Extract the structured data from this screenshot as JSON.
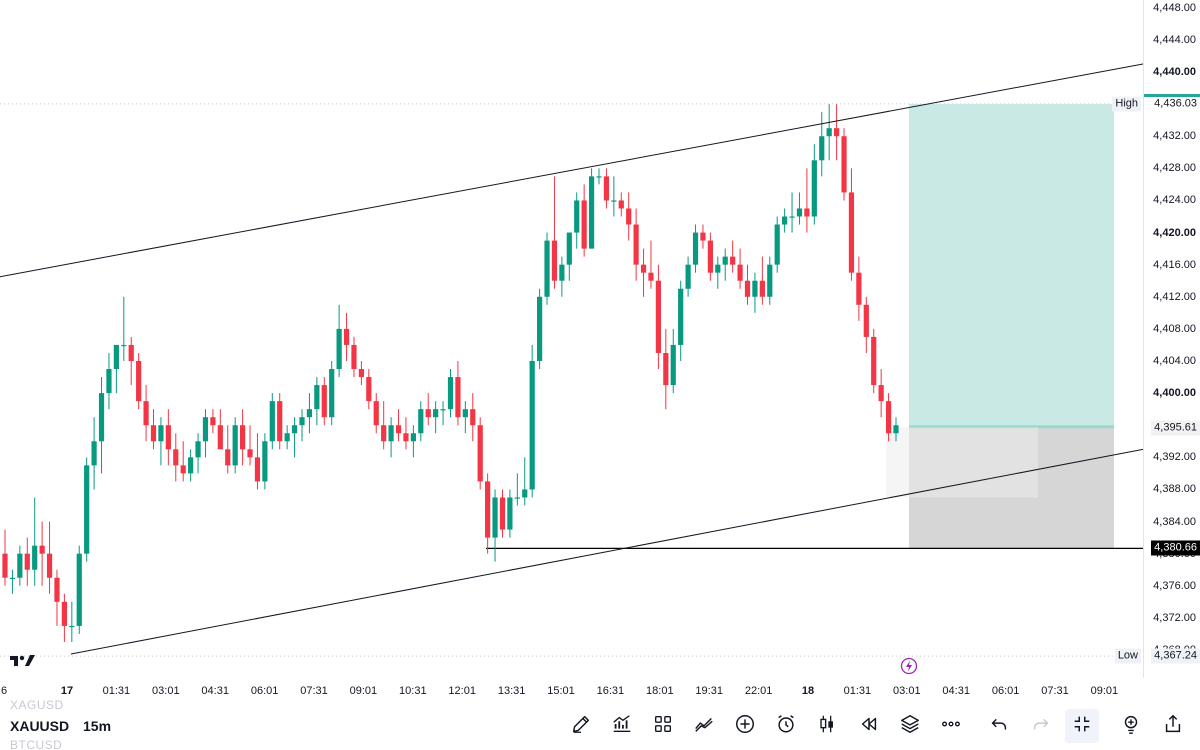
{
  "symbol": "XAUUSD",
  "interval": "15m",
  "faded_symbols": [
    "XAGUSD",
    "BTCUSD"
  ],
  "price_axis": {
    "ticks": [
      "4,448.00",
      "4,444.00",
      "4,440.00",
      "4,436.00",
      "4,432.00",
      "4,428.00",
      "4,424.00",
      "4,420.00",
      "4,416.00",
      "4,412.00",
      "4,408.00",
      "4,404.00",
      "4,400.00",
      "4,396.00",
      "4,392.00",
      "4,388.00",
      "4,384.00",
      "4,380.00",
      "4,376.00",
      "4,372.00",
      "4,368.00"
    ],
    "bold_ticks": [
      "4,440.00",
      "4,420.00",
      "4,400.00"
    ],
    "high_label": "High",
    "high_value": "4,436.03",
    "current_value": "4,395.61",
    "stop_value": "4,380.66",
    "low_label": "Low",
    "low_value": "4,367.24"
  },
  "time_axis": {
    "labels": [
      "6",
      "17",
      "01:31",
      "03:01",
      "04:31",
      "06:01",
      "07:31",
      "09:01",
      "10:31",
      "12:01",
      "13:31",
      "15:01",
      "16:31",
      "18:01",
      "19:31",
      "22:01",
      "18",
      "01:31",
      "03:01",
      "04:31",
      "06:01",
      "07:31",
      "09:01"
    ],
    "bold_labels": [
      "17",
      "18"
    ]
  },
  "colors": {
    "up": "#089981",
    "down": "#f23645",
    "profit_zone": "#c6e9e3",
    "loss_zone": "#d6d6d6",
    "current_tag": "#f2f2f2",
    "stop_tag": "#000000",
    "high_tag": "#26a69a"
  },
  "toolbar_icons": [
    "pencil-icon",
    "indicators-icon",
    "layout-grid-icon",
    "compare-icon",
    "add-icon",
    "alarm-icon",
    "candles-icon",
    "replay-icon",
    "layers-icon",
    "more-icon",
    "undo-icon",
    "redo-icon",
    "fullscreen-exit-icon",
    "idea-icon",
    "share-icon"
  ],
  "chart_data": {
    "type": "candlestick",
    "symbol": "XAUUSD",
    "timeframe": "15m",
    "ylim": [
      4364,
      4449
    ],
    "candles": [
      [
        4380.0,
        4383.0,
        4376.0,
        4377.0
      ],
      [
        4377.0,
        4378.0,
        4375.0,
        4377.0
      ],
      [
        4377.0,
        4381.0,
        4376.0,
        4380.0
      ],
      [
        4380.0,
        4382.0,
        4376.0,
        4378.0
      ],
      [
        4378.0,
        4387.0,
        4376.0,
        4381.0
      ],
      [
        4381.0,
        4384.0,
        4376.0,
        4380.0
      ],
      [
        4380.0,
        4384.0,
        4375.0,
        4377.0
      ],
      [
        4377.0,
        4378.0,
        4371.0,
        4374.0
      ],
      [
        4374.0,
        4375.0,
        4369.0,
        4371.0
      ],
      [
        4371.0,
        4374.0,
        4369.0,
        4371.0
      ],
      [
        4371.0,
        4381.0,
        4370.0,
        4380.0
      ],
      [
        4380.0,
        4392.0,
        4379.0,
        4391.0
      ],
      [
        4391.0,
        4397.0,
        4388.0,
        4394.0
      ],
      [
        4394.0,
        4402.0,
        4390.0,
        4400.0
      ],
      [
        4400.0,
        4405.0,
        4398.0,
        4403.0
      ],
      [
        4403.0,
        4406.0,
        4400.0,
        4406.0
      ],
      [
        4406.0,
        4412.0,
        4404.0,
        4406.0
      ],
      [
        4406.0,
        4407.0,
        4401.0,
        4404.0
      ],
      [
        4404.0,
        4405.0,
        4398.0,
        4399.0
      ],
      [
        4399.0,
        4401.0,
        4394.0,
        4396.0
      ],
      [
        4396.0,
        4398.0,
        4393.0,
        4394.0
      ],
      [
        4394.0,
        4397.0,
        4391.0,
        4396.0
      ],
      [
        4396.0,
        4398.0,
        4391.0,
        4393.0
      ],
      [
        4393.0,
        4395.0,
        4389.0,
        4391.0
      ],
      [
        4391.0,
        4394.0,
        4389.0,
        4390.0
      ],
      [
        4390.0,
        4393.0,
        4389.0,
        4392.0
      ],
      [
        4392.0,
        4395.0,
        4390.0,
        4394.0
      ],
      [
        4394.0,
        4398.0,
        4392.0,
        4397.0
      ],
      [
        4397.0,
        4398.0,
        4395.0,
        4396.0
      ],
      [
        4396.0,
        4398.0,
        4393.0,
        4393.0
      ],
      [
        4393.0,
        4396.0,
        4390.0,
        4391.0
      ],
      [
        4391.0,
        4397.0,
        4390.0,
        4396.0
      ],
      [
        4396.0,
        4398.0,
        4391.0,
        4393.0
      ],
      [
        4393.0,
        4396.0,
        4391.0,
        4392.0
      ],
      [
        4392.0,
        4395.0,
        4388.0,
        4389.0
      ],
      [
        4389.0,
        4395.0,
        4388.0,
        4394.0
      ],
      [
        4394.0,
        4400.0,
        4393.0,
        4399.0
      ],
      [
        4399.0,
        4400.0,
        4393.0,
        4394.0
      ],
      [
        4394.0,
        4396.0,
        4393.0,
        4395.0
      ],
      [
        4395.0,
        4397.0,
        4392.0,
        4396.0
      ],
      [
        4396.0,
        4398.0,
        4394.0,
        4397.0
      ],
      [
        4397.0,
        4400.0,
        4395.0,
        4398.0
      ],
      [
        4398.0,
        4402.0,
        4396.0,
        4401.0
      ],
      [
        4401.0,
        4402.0,
        4396.0,
        4397.0
      ],
      [
        4397.0,
        4404.0,
        4396.0,
        4403.0
      ],
      [
        4403.0,
        4411.0,
        4402.0,
        4408.0
      ],
      [
        4408.0,
        4410.0,
        4404.0,
        4406.0
      ],
      [
        4406.0,
        4407.0,
        4402.0,
        4403.0
      ],
      [
        4403.0,
        4404.0,
        4401.0,
        4402.0
      ],
      [
        4402.0,
        4403.0,
        4398.0,
        4399.0
      ],
      [
        4399.0,
        4400.0,
        4395.0,
        4396.0
      ],
      [
        4396.0,
        4399.0,
        4393.0,
        4394.0
      ],
      [
        4394.0,
        4397.0,
        4392.0,
        4396.0
      ],
      [
        4396.0,
        4398.0,
        4394.0,
        4395.0
      ],
      [
        4395.0,
        4397.0,
        4393.0,
        4394.0
      ],
      [
        4394.0,
        4396.0,
        4392.0,
        4395.0
      ],
      [
        4395.0,
        4399.0,
        4394.0,
        4398.0
      ],
      [
        4398.0,
        4400.0,
        4396.0,
        4397.0
      ],
      [
        4397.0,
        4399.0,
        4395.0,
        4398.0
      ],
      [
        4398.0,
        4399.0,
        4396.0,
        4398.0
      ],
      [
        4398.0,
        4403.0,
        4397.0,
        4402.0
      ],
      [
        4402.0,
        4404.0,
        4396.0,
        4397.0
      ],
      [
        4397.0,
        4399.0,
        4395.0,
        4398.0
      ],
      [
        4398.0,
        4400.0,
        4394.0,
        4396.0
      ],
      [
        4396.0,
        4397.0,
        4388.0,
        4389.0
      ],
      [
        4389.0,
        4390.0,
        4380.0,
        4382.0
      ],
      [
        4382.0,
        4388.0,
        4379.0,
        4387.0
      ],
      [
        4387.0,
        4388.0,
        4382.0,
        4383.0
      ],
      [
        4383.0,
        4388.0,
        4382.0,
        4387.0
      ],
      [
        4387.0,
        4390.0,
        4386.0,
        4387.0
      ],
      [
        4387.0,
        4392.0,
        4386.0,
        4388.0
      ],
      [
        4388.0,
        4406.0,
        4387.0,
        4404.0
      ],
      [
        4404.0,
        4413.0,
        4403.0,
        4412.0
      ],
      [
        4412.0,
        4420.0,
        4411.0,
        4419.0
      ],
      [
        4419.0,
        4427.0,
        4413.0,
        4414.0
      ],
      [
        4414.0,
        4417.0,
        4412.0,
        4416.0
      ],
      [
        4416.0,
        4420.0,
        4414.0,
        4420.0
      ],
      [
        4420.0,
        4425.0,
        4418.0,
        4424.0
      ],
      [
        4424.0,
        4426.0,
        4417.0,
        4418.0
      ],
      [
        4418.0,
        4428.0,
        4418.0,
        4427.0
      ],
      [
        4427.0,
        4428.0,
        4426.0,
        4427.0
      ],
      [
        4427.0,
        4428.0,
        4423.0,
        4424.0
      ],
      [
        4424.0,
        4427.0,
        4422.0,
        4424.0
      ],
      [
        4424.0,
        4425.0,
        4422.0,
        4423.0
      ],
      [
        4423.0,
        4425.0,
        4419.0,
        4421.0
      ],
      [
        4421.0,
        4423.0,
        4414.0,
        4416.0
      ],
      [
        4416.0,
        4418.0,
        4412.0,
        4415.0
      ],
      [
        4415.0,
        4419.0,
        4413.0,
        4414.0
      ],
      [
        4414.0,
        4416.0,
        4403.0,
        4405.0
      ],
      [
        4405.0,
        4408.0,
        4398.0,
        4401.0
      ],
      [
        4401.0,
        4408.0,
        4400.0,
        4406.0
      ],
      [
        4406.0,
        4414.0,
        4404.0,
        4413.0
      ],
      [
        4413.0,
        4417.0,
        4412.0,
        4416.0
      ],
      [
        4416.0,
        4421.0,
        4415.0,
        4420.0
      ],
      [
        4420.0,
        4421.0,
        4418.0,
        4419.0
      ],
      [
        4419.0,
        4420.0,
        4414.0,
        4415.0
      ],
      [
        4415.0,
        4417.0,
        4413.0,
        4416.0
      ],
      [
        4416.0,
        4418.0,
        4414.0,
        4417.0
      ],
      [
        4417.0,
        4419.0,
        4415.0,
        4416.0
      ],
      [
        4416.0,
        4418.0,
        4413.0,
        4414.0
      ],
      [
        4414.0,
        4416.0,
        4411.0,
        4412.0
      ],
      [
        4412.0,
        4415.0,
        4410.0,
        4414.0
      ],
      [
        4414.0,
        4417.0,
        4411.0,
        4412.0
      ],
      [
        4412.0,
        4417.0,
        4411.0,
        4416.0
      ],
      [
        4416.0,
        4422.0,
        4415.0,
        4421.0
      ],
      [
        4421.0,
        4423.0,
        4420.0,
        4422.0
      ],
      [
        4422.0,
        4425.0,
        4420.0,
        4422.0
      ],
      [
        4422.0,
        4425.0,
        4421.0,
        4423.0
      ],
      [
        4423.0,
        4428.0,
        4420.0,
        4422.0
      ],
      [
        4422.0,
        4431.0,
        4421.0,
        4429.0
      ],
      [
        4429.0,
        4435.0,
        4427.0,
        4432.0
      ],
      [
        4432.0,
        4436.0,
        4429.0,
        4433.0
      ],
      [
        4433.0,
        4436.0,
        4429.0,
        4432.0
      ],
      [
        4432.0,
        4433.0,
        4424.0,
        4425.0
      ],
      [
        4425.0,
        4428.0,
        4414.0,
        4415.0
      ],
      [
        4415.0,
        4417.0,
        4409.0,
        4411.0
      ],
      [
        4411.0,
        4412.0,
        4405.0,
        4407.0
      ],
      [
        4407.0,
        4408.0,
        4400.0,
        4401.0
      ],
      [
        4401.0,
        4403.0,
        4397.0,
        4399.0
      ],
      [
        4399.0,
        4400.0,
        4394.0,
        4395.0
      ],
      [
        4395.0,
        4397.0,
        4394.0,
        4396.0
      ]
    ],
    "series": [
      {
        "name": "XAUUSD"
      }
    ],
    "price_labels": [
      "4,448.00",
      "4,444.00",
      "4,440.00",
      "4,436.00",
      "4,432.00",
      "4,428.00",
      "4,424.00",
      "4,420.00",
      "4,416.00",
      "4,412.00",
      "4,408.00",
      "4,404.00",
      "4,400.00",
      "4,396.00",
      "4,392.00",
      "4,388.00",
      "4,384.00",
      "4,380.00",
      "4,376.00",
      "4,372.00",
      "4,368.00"
    ],
    "time_labels": [
      "6",
      "17",
      "01:31",
      "03:01",
      "04:31",
      "06:01",
      "07:31",
      "09:01",
      "10:31",
      "12:01",
      "13:31",
      "15:01",
      "16:31",
      "18:01",
      "19:31",
      "22:01",
      "18",
      "01:31",
      "03:01",
      "04:31",
      "06:01",
      "07:31",
      "09:01"
    ],
    "annotations": {
      "channel_upper": [
        [
          0,
          4414.5
        ],
        [
          131,
          4441.0
        ]
      ],
      "channel_lower": [
        [
          7,
          4367.5
        ],
        [
          131,
          4393.0
        ]
      ],
      "horizontal_line": {
        "start": 55,
        "end": 131,
        "price": 4380.66
      },
      "position": {
        "entry": 4395.61,
        "target": 4436.03,
        "stop": 4380.66,
        "start": 104,
        "end": 127
      },
      "high": 4436.03,
      "low": 4367.24
    },
    "grid": false
  }
}
